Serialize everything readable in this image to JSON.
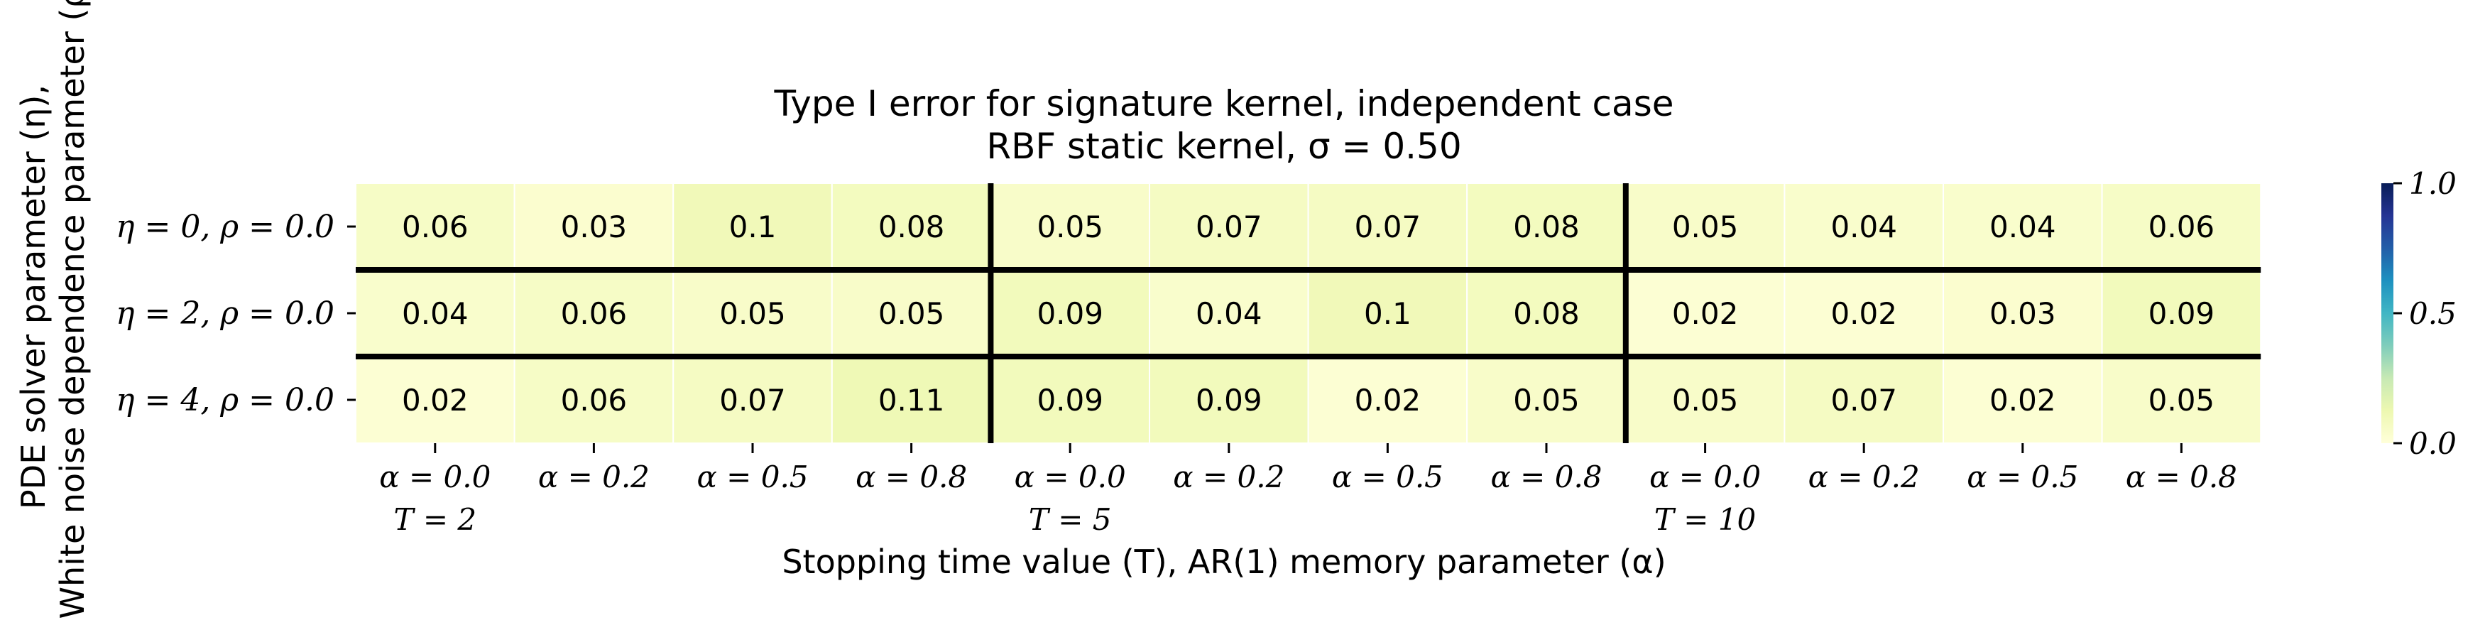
{
  "chart_data": {
    "type": "heatmap",
    "title": "Type I error for signature kernel, independent case",
    "subtitle": "RBF static kernel, σ = 0.50",
    "xlabel": "Stopping time value (T), AR(1) memory parameter (α)",
    "ylabel_line1": "White noise dependence parameter (ρ)",
    "ylabel_line2": "PDE solver parameter (η),",
    "row_labels": [
      "η = 0, ρ = 0.0",
      "η = 2, ρ = 0.0",
      "η = 4, ρ = 0.0"
    ],
    "col_labels": [
      "α = 0.0",
      "α = 0.2",
      "α = 0.5",
      "α = 0.8",
      "α = 0.0",
      "α = 0.2",
      "α = 0.5",
      "α = 0.8",
      "α = 0.0",
      "α = 0.2",
      "α = 0.5",
      "α = 0.8"
    ],
    "group_labels": [
      "T = 2",
      "T = 5",
      "T = 10"
    ],
    "values": [
      [
        0.06,
        0.03,
        0.1,
        0.08,
        0.05,
        0.07,
        0.07,
        0.08,
        0.05,
        0.04,
        0.04,
        0.06
      ],
      [
        0.04,
        0.06,
        0.05,
        0.05,
        0.09,
        0.04,
        0.1,
        0.08,
        0.02,
        0.02,
        0.03,
        0.09
      ],
      [
        0.02,
        0.06,
        0.07,
        0.11,
        0.09,
        0.09,
        0.02,
        0.05,
        0.05,
        0.07,
        0.02,
        0.05
      ]
    ],
    "colorbar": {
      "min": 0.0,
      "max": 1.0,
      "ticks": [
        "0.0",
        "0.5",
        "1.0"
      ],
      "colormap": "YlGnBu"
    }
  }
}
